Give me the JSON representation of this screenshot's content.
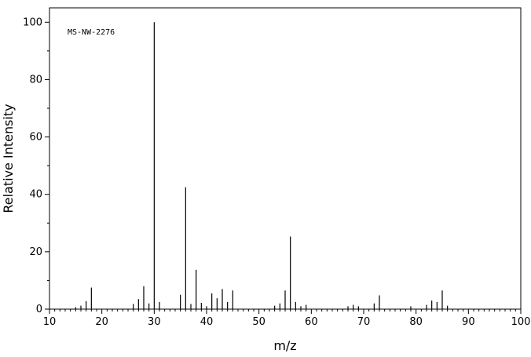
{
  "chart_data": {
    "type": "bar",
    "title": "",
    "annotation": "MS-NW-2276",
    "xlabel": "m/z",
    "ylabel": "Relative Intensity",
    "xlim": [
      10,
      100
    ],
    "ylim": [
      0,
      105
    ],
    "xticks": [
      10,
      20,
      30,
      40,
      50,
      60,
      70,
      80,
      90,
      100
    ],
    "yticks": [
      0,
      20,
      40,
      60,
      80,
      100
    ],
    "grid": false,
    "legend": "none",
    "peaks": [
      {
        "x": 15,
        "y": 0.7
      },
      {
        "x": 16,
        "y": 1.2
      },
      {
        "x": 17,
        "y": 2.8
      },
      {
        "x": 18,
        "y": 7.5
      },
      {
        "x": 26,
        "y": 1.8
      },
      {
        "x": 27,
        "y": 3.5
      },
      {
        "x": 28,
        "y": 8.0
      },
      {
        "x": 29,
        "y": 2.0
      },
      {
        "x": 30,
        "y": 100
      },
      {
        "x": 31,
        "y": 2.5
      },
      {
        "x": 35,
        "y": 5.0
      },
      {
        "x": 36,
        "y": 42.5
      },
      {
        "x": 37,
        "y": 1.8
      },
      {
        "x": 38,
        "y": 13.7
      },
      {
        "x": 39,
        "y": 2.2
      },
      {
        "x": 40,
        "y": 1.0
      },
      {
        "x": 41,
        "y": 5.5
      },
      {
        "x": 42,
        "y": 3.8
      },
      {
        "x": 43,
        "y": 7.0
      },
      {
        "x": 44,
        "y": 2.5
      },
      {
        "x": 45,
        "y": 6.5
      },
      {
        "x": 53,
        "y": 1.2
      },
      {
        "x": 54,
        "y": 2.0
      },
      {
        "x": 55,
        "y": 6.5
      },
      {
        "x": 56,
        "y": 25.3
      },
      {
        "x": 57,
        "y": 2.5
      },
      {
        "x": 58,
        "y": 1.0
      },
      {
        "x": 59,
        "y": 1.5
      },
      {
        "x": 67,
        "y": 1.0
      },
      {
        "x": 68,
        "y": 1.5
      },
      {
        "x": 69,
        "y": 1.0
      },
      {
        "x": 72,
        "y": 2.0
      },
      {
        "x": 73,
        "y": 4.8
      },
      {
        "x": 79,
        "y": 1.0
      },
      {
        "x": 82,
        "y": 1.5
      },
      {
        "x": 83,
        "y": 3.0
      },
      {
        "x": 84,
        "y": 2.5
      },
      {
        "x": 85,
        "y": 6.5
      },
      {
        "x": 86,
        "y": 1.2
      }
    ]
  }
}
